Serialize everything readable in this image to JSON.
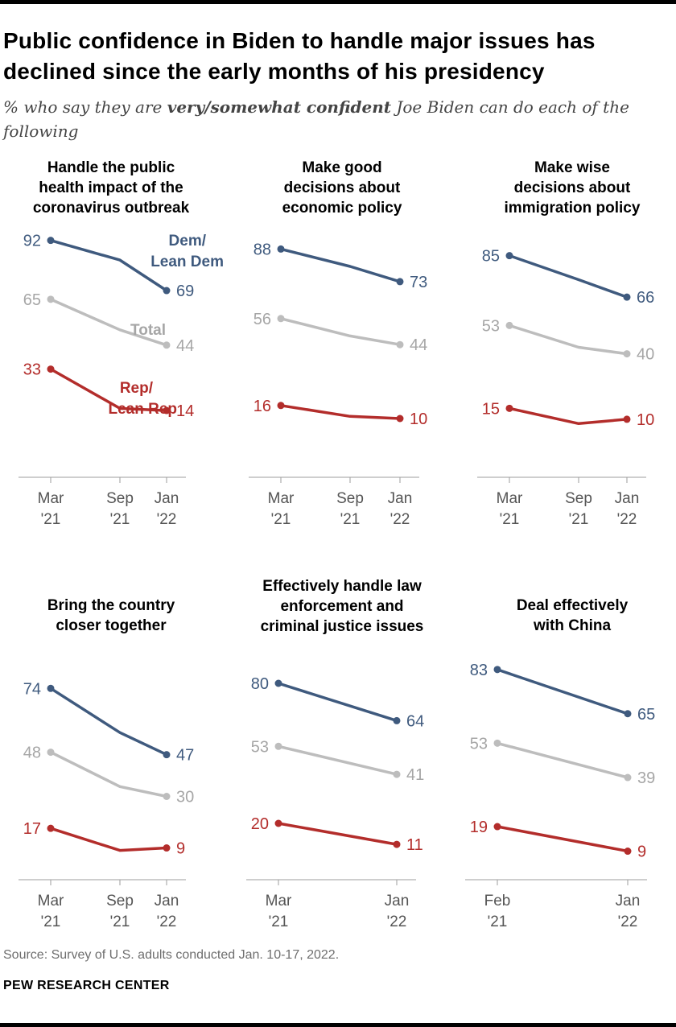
{
  "title": "Public confidence in Biden to handle major issues has declined since the early months of his presidency",
  "subtitle": {
    "pre": "% who say they are ",
    "emph": "very/somewhat confident",
    "post": " Joe Biden can do each of the following"
  },
  "colors": {
    "dem": "#3f5a7e",
    "total": "#bdbdbd",
    "total_text": "#a6a6a6",
    "rep": "#b32d2b",
    "axis": "#9e9e9e"
  },
  "legend": {
    "dem": [
      "Dem/",
      "Lean Dem"
    ],
    "total": [
      "Total"
    ],
    "rep": [
      "Rep/",
      "Lean Rep"
    ]
  },
  "chart_data": [
    {
      "type": "line",
      "title": [
        "Handle the public",
        "health impact of the",
        "coronavirus outbreak"
      ],
      "x": [
        [
          "Mar",
          "'21"
        ],
        [
          "Sep",
          "'21"
        ],
        [
          "Jan",
          "'22"
        ]
      ],
      "series": [
        {
          "name": "Dem/Lean Dem",
          "key": "dem",
          "values": [
            92,
            83,
            69
          ],
          "labels": [
            true,
            false,
            true
          ]
        },
        {
          "name": "Total",
          "key": "total",
          "values": [
            65,
            51,
            44
          ],
          "labels": [
            true,
            false,
            true
          ]
        },
        {
          "name": "Rep/Lean Rep",
          "key": "rep",
          "values": [
            33,
            15,
            14
          ],
          "labels": [
            true,
            false,
            true
          ]
        }
      ]
    },
    {
      "type": "line",
      "title": [
        "Make good",
        "decisions about",
        "economic policy"
      ],
      "x": [
        [
          "Mar",
          "'21"
        ],
        [
          "Sep",
          "'21"
        ],
        [
          "Jan",
          "'22"
        ]
      ],
      "series": [
        {
          "name": "Dem/Lean Dem",
          "key": "dem",
          "values": [
            88,
            80,
            73
          ],
          "labels": [
            true,
            false,
            true
          ]
        },
        {
          "name": "Total",
          "key": "total",
          "values": [
            56,
            48,
            44
          ],
          "labels": [
            true,
            false,
            true
          ]
        },
        {
          "name": "Rep/Lean Rep",
          "key": "rep",
          "values": [
            16,
            11,
            10
          ],
          "labels": [
            true,
            false,
            true
          ]
        }
      ]
    },
    {
      "type": "line",
      "title": [
        "Make wise",
        "decisions about",
        "immigration policy"
      ],
      "x": [
        [
          "Mar",
          "'21"
        ],
        [
          "Sep",
          "'21"
        ],
        [
          "Jan",
          "'22"
        ]
      ],
      "series": [
        {
          "name": "Dem/Lean Dem",
          "key": "dem",
          "values": [
            85,
            74,
            66
          ],
          "labels": [
            true,
            false,
            true
          ]
        },
        {
          "name": "Total",
          "key": "total",
          "values": [
            53,
            43,
            40
          ],
          "labels": [
            true,
            false,
            true
          ]
        },
        {
          "name": "Rep/Lean Rep",
          "key": "rep",
          "values": [
            15,
            8,
            10
          ],
          "labels": [
            true,
            false,
            true
          ]
        }
      ]
    },
    {
      "type": "line",
      "title": [
        "Bring the country",
        "closer together"
      ],
      "x": [
        [
          "Mar",
          "'21"
        ],
        [
          "Sep",
          "'21"
        ],
        [
          "Jan",
          "'22"
        ]
      ],
      "series": [
        {
          "name": "Dem/Lean Dem",
          "key": "dem",
          "values": [
            74,
            56,
            47
          ],
          "labels": [
            true,
            false,
            true
          ]
        },
        {
          "name": "Total",
          "key": "total",
          "values": [
            48,
            34,
            30
          ],
          "labels": [
            true,
            false,
            true
          ]
        },
        {
          "name": "Rep/Lean Rep",
          "key": "rep",
          "values": [
            17,
            8,
            9
          ],
          "labels": [
            true,
            false,
            true
          ]
        }
      ]
    },
    {
      "type": "line",
      "title": [
        "Effectively handle law",
        "enforcement and",
        "criminal justice issues"
      ],
      "x": [
        [
          "Mar",
          "'21"
        ],
        [
          "Jan",
          "'22"
        ]
      ],
      "series": [
        {
          "name": "Dem/Lean Dem",
          "key": "dem",
          "values": [
            80,
            64
          ],
          "labels": [
            true,
            true
          ]
        },
        {
          "name": "Total",
          "key": "total",
          "values": [
            53,
            41
          ],
          "labels": [
            true,
            true
          ]
        },
        {
          "name": "Rep/Lean Rep",
          "key": "rep",
          "values": [
            20,
            11
          ],
          "labels": [
            true,
            true
          ]
        }
      ]
    },
    {
      "type": "line",
      "title": [
        "Deal effectively",
        "with China"
      ],
      "x": [
        [
          "Feb",
          "'21"
        ],
        [
          "Jan",
          "'22"
        ]
      ],
      "series": [
        {
          "name": "Dem/Lean Dem",
          "key": "dem",
          "values": [
            83,
            65
          ],
          "labels": [
            true,
            true
          ]
        },
        {
          "name": "Total",
          "key": "total",
          "values": [
            53,
            39
          ],
          "labels": [
            true,
            true
          ]
        },
        {
          "name": "Rep/Lean Rep",
          "key": "rep",
          "values": [
            19,
            9
          ],
          "labels": [
            true,
            true
          ]
        }
      ]
    }
  ],
  "source": "Source: Survey of U.S. adults conducted Jan. 10-17, 2022.",
  "brand": "PEW RESEARCH CENTER"
}
